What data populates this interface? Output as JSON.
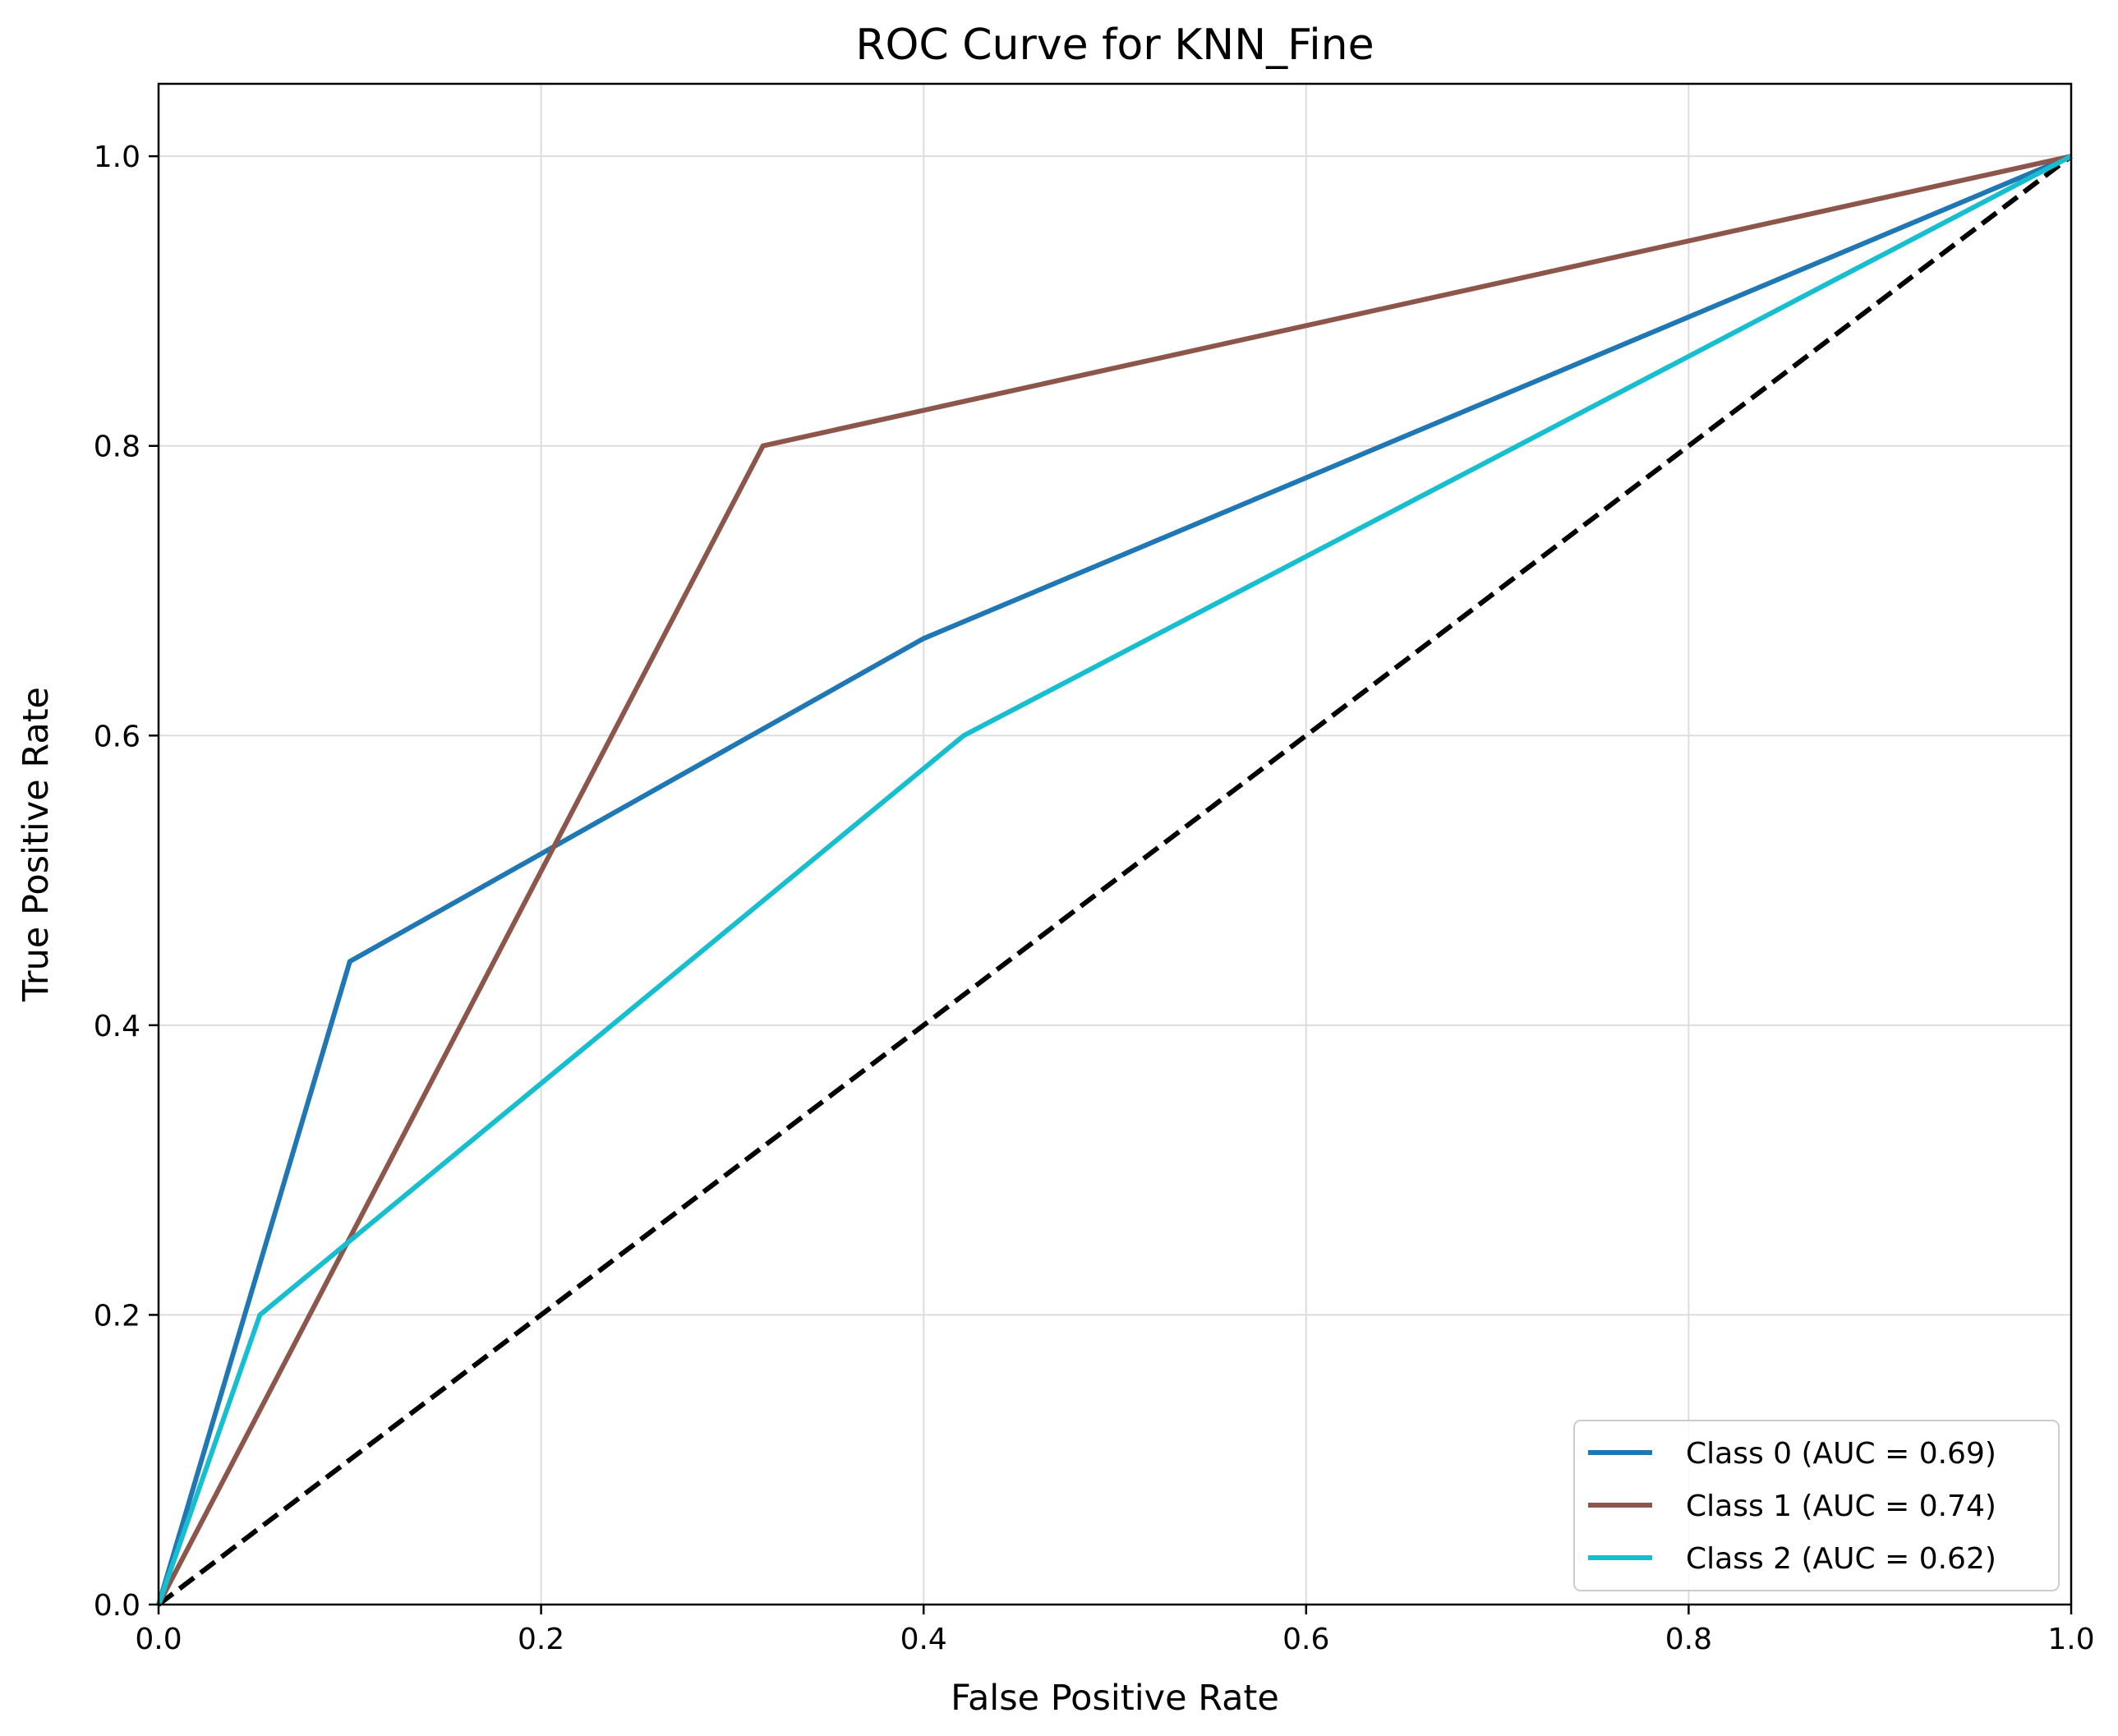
{
  "chart_data": {
    "type": "line",
    "title": "ROC Curve for KNN_Fine",
    "xlabel": "False Positive Rate",
    "ylabel": "True Positive Rate",
    "xlim": [
      0.0,
      1.0
    ],
    "ylim": [
      0.0,
      1.05
    ],
    "xticks": [
      "0.0",
      "0.2",
      "0.4",
      "0.6",
      "0.8",
      "1.0"
    ],
    "yticks": [
      "0.0",
      "0.2",
      "0.4",
      "0.6",
      "0.8",
      "1.0"
    ],
    "grid": true,
    "legend_position": "lower-right",
    "series": [
      {
        "name": "Class 0 (AUC = 0.69)",
        "color": "#1f77b4",
        "x": [
          0.0,
          0.1,
          0.4,
          1.0
        ],
        "y": [
          0.0,
          0.444,
          0.667,
          1.0
        ]
      },
      {
        "name": "Class 1 (AUC = 0.74)",
        "color": "#8c564b",
        "x": [
          0.0,
          0.316,
          1.0
        ],
        "y": [
          0.0,
          0.8,
          1.0
        ]
      },
      {
        "name": "Class 2 (AUC = 0.62)",
        "color": "#17becf",
        "x": [
          0.0,
          0.053,
          0.421,
          1.0
        ],
        "y": [
          0.0,
          0.2,
          0.6,
          1.0
        ]
      }
    ],
    "reference_line": {
      "color": "#000000",
      "style": "dashed",
      "x": [
        0.0,
        1.0
      ],
      "y": [
        0.0,
        1.0
      ]
    }
  }
}
